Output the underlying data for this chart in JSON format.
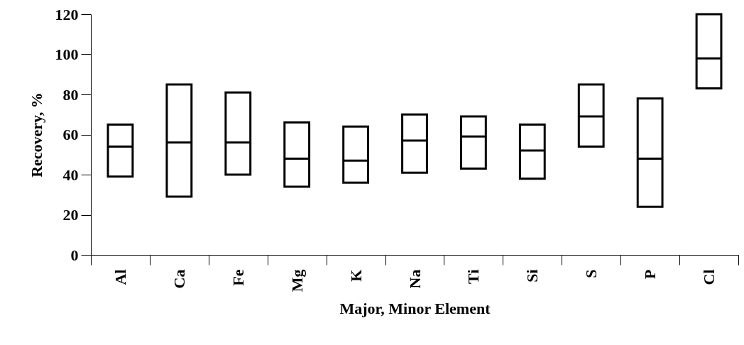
{
  "chart_data": {
    "type": "box",
    "xlabel": "Major, Minor Element",
    "ylabel": "Recovery, %",
    "categories": [
      "Al",
      "Ca",
      "Fe",
      "Mg",
      "K",
      "Na",
      "Ti",
      "Si",
      "S",
      "P",
      "Cl"
    ],
    "boxes": [
      {
        "low": 39,
        "q1": 39,
        "median": 54,
        "q3": 65,
        "high": 65
      },
      {
        "low": 29,
        "q1": 29,
        "median": 56,
        "q3": 85,
        "high": 85
      },
      {
        "low": 40,
        "q1": 40,
        "median": 56,
        "q3": 81,
        "high": 81
      },
      {
        "low": 34,
        "q1": 34,
        "median": 48,
        "q3": 66,
        "high": 66
      },
      {
        "low": 36,
        "q1": 36,
        "median": 47,
        "q3": 64,
        "high": 64
      },
      {
        "low": 41,
        "q1": 41,
        "median": 57,
        "q3": 70,
        "high": 70
      },
      {
        "low": 43,
        "q1": 43,
        "median": 59,
        "q3": 69,
        "high": 69
      },
      {
        "low": 38,
        "q1": 38,
        "median": 52,
        "q3": 65,
        "high": 65
      },
      {
        "low": 54,
        "q1": 54,
        "median": 69,
        "q3": 85,
        "high": 85
      },
      {
        "low": 24,
        "q1": 24,
        "median": 48,
        "q3": 78,
        "high": 78
      },
      {
        "low": 83,
        "q1": 83,
        "median": 98,
        "q3": 120,
        "high": 120
      }
    ],
    "ylim": [
      0,
      120
    ],
    "yticks": [
      0,
      20,
      40,
      60,
      80,
      100,
      120
    ],
    "grid": false
  }
}
